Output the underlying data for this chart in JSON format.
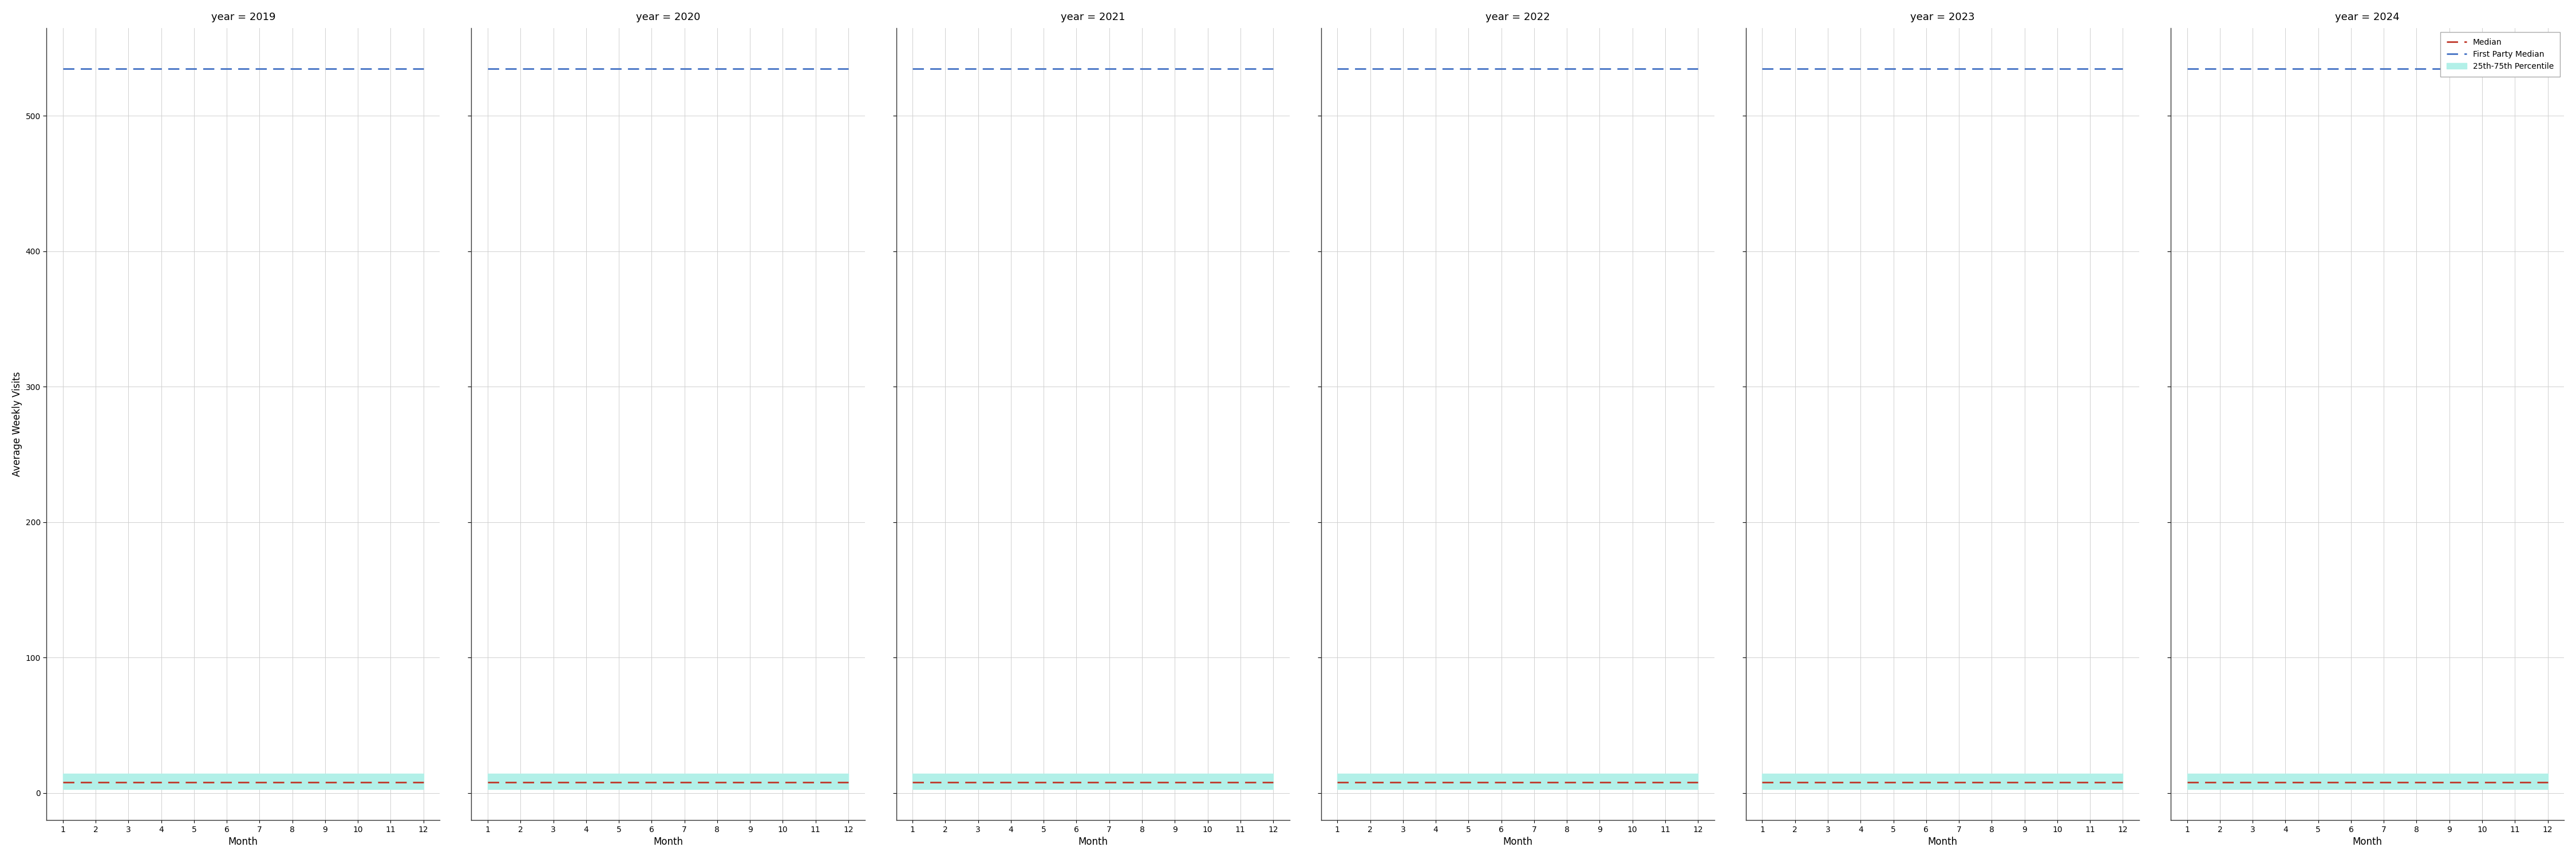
{
  "years": [
    2019,
    2020,
    2021,
    2022,
    2023,
    2024
  ],
  "months": [
    1,
    2,
    3,
    4,
    5,
    6,
    7,
    8,
    9,
    10,
    11,
    12
  ],
  "median_value": 8,
  "first_party_median_value": 535,
  "percentile_25": 3,
  "percentile_75": 14,
  "ylim": [
    -20,
    565
  ],
  "yticks": [
    0,
    100,
    200,
    300,
    400,
    500
  ],
  "median_color": "#c0392b",
  "first_party_color": "#4472c4",
  "percentile_color": "#b2f0e8",
  "ylabel": "Average Weekly Visits",
  "xlabel": "Month",
  "legend_labels": [
    "Median",
    "First Party Median",
    "25th-75th Percentile"
  ],
  "title_prefix": "year = ",
  "fig_width": 45.0,
  "fig_height": 15.0,
  "background_color": "#ffffff",
  "grid_color": "#d0d0d0"
}
